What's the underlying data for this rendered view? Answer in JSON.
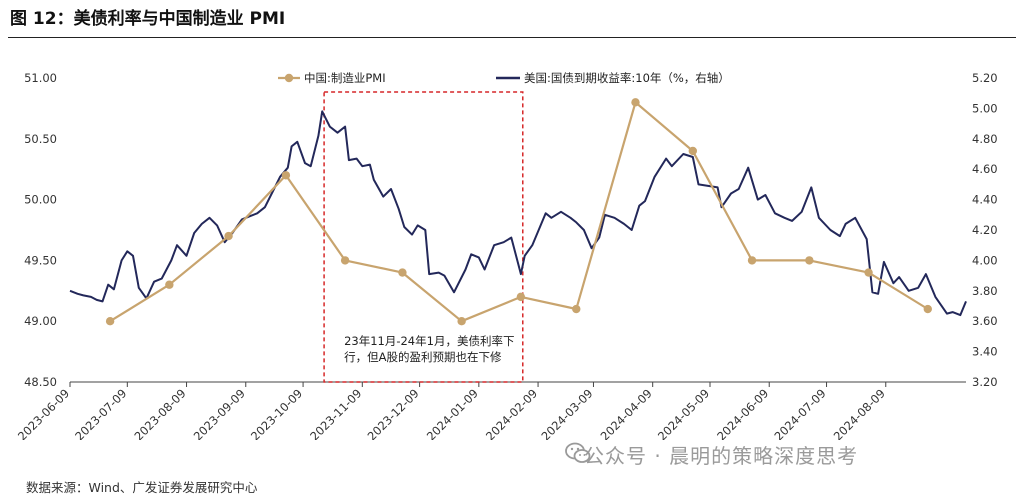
{
  "figure": {
    "title": "图 12：美债利率与中国制造业 PMI",
    "source": "数据来源：Wind、广发证券发展研究中心",
    "watermark": "公众号 · 晨明的策略深度思考",
    "watermark_icon": "wechat-icon"
  },
  "chart_data": {
    "type": "line",
    "legend_position": "top",
    "grid": false,
    "x_tick_labels": [
      "2023-06-09",
      "2023-07-09",
      "2023-08-09",
      "2023-09-09",
      "2023-10-09",
      "2023-11-09",
      "2023-12-09",
      "2024-01-09",
      "2024-02-09",
      "2024-03-09",
      "2024-04-09",
      "2024-05-09",
      "2024-06-09",
      "2024-07-09",
      "2024-08-09"
    ],
    "x_range": [
      "2023-06-09",
      "2024-09-20"
    ],
    "y_left": {
      "ticks": [
        "48.50",
        "49.00",
        "49.50",
        "50.00",
        "50.50",
        "51.00"
      ],
      "range": [
        48.5,
        51.0
      ]
    },
    "y_right": {
      "ticks": [
        "3.20",
        "3.40",
        "3.60",
        "3.80",
        "4.00",
        "4.20",
        "4.40",
        "4.60",
        "4.80",
        "5.00",
        "5.20"
      ],
      "range": [
        3.2,
        5.2
      ]
    },
    "colors": {
      "pmi": "#C8A46E",
      "yield": "#23285A",
      "highlight": "#D62728"
    },
    "series": [
      {
        "name": "中国:制造业PMI",
        "axis": "left",
        "marker": "circle",
        "points": [
          [
            "2023-06-30",
            49.0
          ],
          [
            "2023-07-31",
            49.3
          ],
          [
            "2023-08-31",
            49.7
          ],
          [
            "2023-09-30",
            50.2
          ],
          [
            "2023-10-31",
            49.5
          ],
          [
            "2023-11-30",
            49.4
          ],
          [
            "2023-12-31",
            49.0
          ],
          [
            "2024-01-31",
            49.2
          ],
          [
            "2024-02-29",
            49.1
          ],
          [
            "2024-03-31",
            50.8
          ],
          [
            "2024-04-30",
            50.4
          ],
          [
            "2024-05-31",
            49.5
          ],
          [
            "2024-06-30",
            49.5
          ],
          [
            "2024-07-31",
            49.4
          ],
          [
            "2024-08-31",
            49.1
          ]
        ]
      },
      {
        "name": "美国:国债到期收益率:10年（%，右轴）",
        "axis": "right",
        "marker": "none",
        "points": [
          [
            "2023-06-09",
            3.8
          ],
          [
            "2023-06-13",
            3.78
          ],
          [
            "2023-06-16",
            3.77
          ],
          [
            "2023-06-20",
            3.76
          ],
          [
            "2023-06-23",
            3.74
          ],
          [
            "2023-06-26",
            3.73
          ],
          [
            "2023-06-29",
            3.84
          ],
          [
            "2023-07-02",
            3.81
          ],
          [
            "2023-07-06",
            4.0
          ],
          [
            "2023-07-09",
            4.06
          ],
          [
            "2023-07-12",
            4.03
          ],
          [
            "2023-07-15",
            3.82
          ],
          [
            "2023-07-19",
            3.75
          ],
          [
            "2023-07-23",
            3.86
          ],
          [
            "2023-07-27",
            3.88
          ],
          [
            "2023-08-01",
            4.0
          ],
          [
            "2023-08-04",
            4.1
          ],
          [
            "2023-08-09",
            4.03
          ],
          [
            "2023-08-13",
            4.18
          ],
          [
            "2023-08-17",
            4.24
          ],
          [
            "2023-08-21",
            4.28
          ],
          [
            "2023-08-25",
            4.23
          ],
          [
            "2023-08-29",
            4.12
          ],
          [
            "2023-09-02",
            4.18
          ],
          [
            "2023-09-07",
            4.27
          ],
          [
            "2023-09-11",
            4.29
          ],
          [
            "2023-09-15",
            4.31
          ],
          [
            "2023-09-19",
            4.35
          ],
          [
            "2023-09-23",
            4.45
          ],
          [
            "2023-09-27",
            4.55
          ],
          [
            "2023-10-01",
            4.61
          ],
          [
            "2023-10-03",
            4.75
          ],
          [
            "2023-10-06",
            4.78
          ],
          [
            "2023-10-10",
            4.64
          ],
          [
            "2023-10-13",
            4.62
          ],
          [
            "2023-10-17",
            4.82
          ],
          [
            "2023-10-19",
            4.98
          ],
          [
            "2023-10-23",
            4.88
          ],
          [
            "2023-10-27",
            4.84
          ],
          [
            "2023-10-31",
            4.88
          ],
          [
            "2023-11-02",
            4.66
          ],
          [
            "2023-11-06",
            4.67
          ],
          [
            "2023-11-09",
            4.62
          ],
          [
            "2023-11-13",
            4.63
          ],
          [
            "2023-11-15",
            4.53
          ],
          [
            "2023-11-20",
            4.42
          ],
          [
            "2023-11-24",
            4.47
          ],
          [
            "2023-11-28",
            4.34
          ],
          [
            "2023-12-01",
            4.22
          ],
          [
            "2023-12-05",
            4.17
          ],
          [
            "2023-12-08",
            4.23
          ],
          [
            "2023-12-12",
            4.2
          ],
          [
            "2023-12-14",
            3.91
          ],
          [
            "2023-12-19",
            3.92
          ],
          [
            "2023-12-22",
            3.9
          ],
          [
            "2023-12-27",
            3.79
          ],
          [
            "2024-01-02",
            3.94
          ],
          [
            "2024-01-05",
            4.04
          ],
          [
            "2024-01-09",
            4.02
          ],
          [
            "2024-01-12",
            3.94
          ],
          [
            "2024-01-17",
            4.1
          ],
          [
            "2024-01-22",
            4.12
          ],
          [
            "2024-01-26",
            4.15
          ],
          [
            "2024-01-31",
            3.91
          ],
          [
            "2024-02-02",
            4.03
          ],
          [
            "2024-02-06",
            4.1
          ],
          [
            "2024-02-13",
            4.31
          ],
          [
            "2024-02-16",
            4.28
          ],
          [
            "2024-02-21",
            4.32
          ],
          [
            "2024-02-26",
            4.28
          ],
          [
            "2024-02-29",
            4.25
          ],
          [
            "2024-03-04",
            4.2
          ],
          [
            "2024-03-08",
            4.08
          ],
          [
            "2024-03-12",
            4.15
          ],
          [
            "2024-03-15",
            4.3
          ],
          [
            "2024-03-20",
            4.28
          ],
          [
            "2024-03-25",
            4.24
          ],
          [
            "2024-03-29",
            4.2
          ],
          [
            "2024-04-02",
            4.36
          ],
          [
            "2024-04-05",
            4.39
          ],
          [
            "2024-04-10",
            4.55
          ],
          [
            "2024-04-16",
            4.67
          ],
          [
            "2024-04-19",
            4.62
          ],
          [
            "2024-04-25",
            4.7
          ],
          [
            "2024-04-30",
            4.68
          ],
          [
            "2024-05-03",
            4.5
          ],
          [
            "2024-05-08",
            4.49
          ],
          [
            "2024-05-13",
            4.48
          ],
          [
            "2024-05-15",
            4.35
          ],
          [
            "2024-05-20",
            4.44
          ],
          [
            "2024-05-24",
            4.47
          ],
          [
            "2024-05-29",
            4.61
          ],
          [
            "2024-06-03",
            4.4
          ],
          [
            "2024-06-07",
            4.43
          ],
          [
            "2024-06-12",
            4.31
          ],
          [
            "2024-06-17",
            4.28
          ],
          [
            "2024-06-21",
            4.26
          ],
          [
            "2024-06-26",
            4.32
          ],
          [
            "2024-07-01",
            4.48
          ],
          [
            "2024-07-05",
            4.28
          ],
          [
            "2024-07-11",
            4.2
          ],
          [
            "2024-07-16",
            4.16
          ],
          [
            "2024-07-19",
            4.24
          ],
          [
            "2024-07-24",
            4.28
          ],
          [
            "2024-07-30",
            4.14
          ],
          [
            "2024-08-02",
            3.79
          ],
          [
            "2024-08-05",
            3.78
          ],
          [
            "2024-08-08",
            3.99
          ],
          [
            "2024-08-13",
            3.85
          ],
          [
            "2024-08-16",
            3.89
          ],
          [
            "2024-08-21",
            3.8
          ],
          [
            "2024-08-26",
            3.82
          ],
          [
            "2024-08-30",
            3.91
          ],
          [
            "2024-09-04",
            3.76
          ],
          [
            "2024-09-10",
            3.65
          ],
          [
            "2024-09-13",
            3.66
          ],
          [
            "2024-09-17",
            3.64
          ],
          [
            "2024-09-20",
            3.73
          ]
        ]
      }
    ],
    "highlight_box": {
      "from": "2023-10-20",
      "to": "2024-02-01",
      "annotation": [
        "23年11月-24年1月，美债利率下",
        "行，但A股的盈利预期也在下修"
      ]
    }
  }
}
